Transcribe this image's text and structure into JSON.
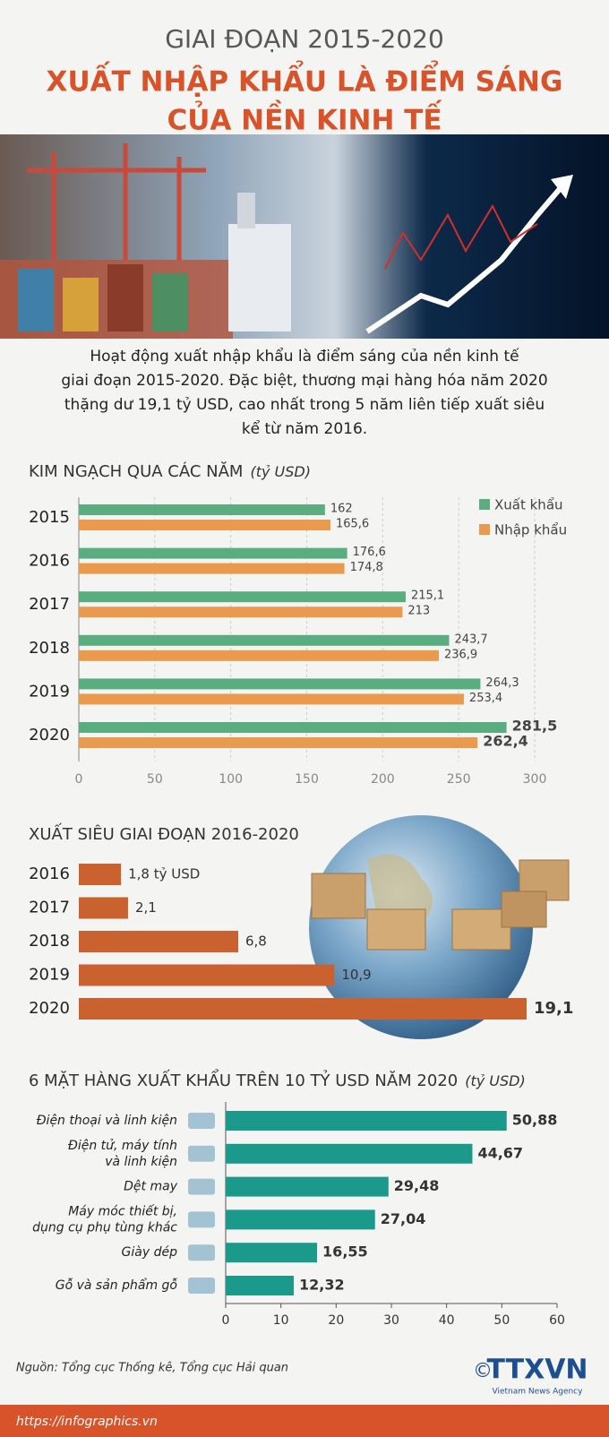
{
  "header": {
    "supertitle": "GIAI ĐOẠN 2015-2020",
    "title_lines": [
      "XUẤT NHẬP KHẨU LÀ ĐIỂM SÁNG",
      "CỦA NỀN KINH TẾ"
    ]
  },
  "intro": {
    "lines": [
      "Hoạt động xuất nhập khẩu là điểm sáng của nền kinh tế",
      "giai đoạn 2015-2020. Đặc biệt, thương mại hàng hóa năm 2020",
      "thặng dư 19,1 tỷ USD, cao nhất trong 5 năm liên tiếp xuất siêu",
      "kể từ năm 2016."
    ]
  },
  "chart_data": [
    {
      "type": "grouped-hbar",
      "title": "KIM NGẠCH QUA CÁC NĂM",
      "unit": "(tỷ USD)",
      "categories": [
        "2015",
        "2016",
        "2017",
        "2018",
        "2019",
        "2020"
      ],
      "series": [
        {
          "name": "Xuất khẩu",
          "color": "#5aad7f",
          "values": [
            162,
            176.6,
            215.1,
            243.7,
            264.3,
            281.5
          ],
          "value_labels": [
            "162",
            "176,6",
            "215,1",
            "243,7",
            "264,3",
            "281,5"
          ]
        },
        {
          "name": "Nhập khẩu",
          "color": "#e99a4c",
          "values": [
            165.6,
            174.8,
            213,
            236.9,
            253.4,
            262.4
          ],
          "value_labels": [
            "165,6",
            "174,8",
            "213",
            "236,9",
            "253,4",
            "262,4"
          ]
        }
      ],
      "xlim": [
        0,
        300
      ],
      "xticks": [
        0,
        50,
        100,
        150,
        200,
        250,
        300
      ],
      "grid": true,
      "legend": "top-right"
    },
    {
      "type": "hbar",
      "title": "XUẤT SIÊU GIAI ĐOẠN 2016-2020",
      "categories": [
        "2016",
        "2017",
        "2018",
        "2019",
        "2020"
      ],
      "values": [
        1.8,
        2.1,
        6.8,
        10.9,
        19.1
      ],
      "value_labels": [
        "1,8 tỷ USD",
        "2,1",
        "6,8",
        "10,9",
        "19,1"
      ],
      "color": "#c9622f"
    },
    {
      "type": "hbar-axis",
      "title": "6 MẶT HÀNG XUẤT KHẨU TRÊN 10 TỶ USD NĂM 2020",
      "unit": "(tỷ USD)",
      "categories": [
        [
          "Điện thoại và linh kiện"
        ],
        [
          "Điện tử, máy tính",
          "và linh kiện"
        ],
        [
          "Dệt may"
        ],
        [
          "Máy móc thiết bị,",
          "dụng cụ phụ tùng khác"
        ],
        [
          "Giày dép"
        ],
        [
          "Gỗ và sản phẩm gỗ"
        ]
      ],
      "values": [
        50.88,
        44.67,
        29.48,
        27.04,
        16.55,
        12.32
      ],
      "value_labels": [
        "50,88",
        "44,67",
        "29,48",
        "27,04",
        "16,55",
        "12,32"
      ],
      "color": "#1b9a8b",
      "xlim": [
        0,
        60
      ],
      "xticks": [
        0,
        10,
        20,
        30,
        40,
        50,
        60
      ],
      "grid": false
    }
  ],
  "footer": {
    "source": "Nguồn: Tổng cục Thống kê, Tổng cục Hải quan",
    "url": "https://infographics.vn",
    "logo": "TTXVN",
    "logo_sub": "Vietnam News Agency",
    "copyright": "©"
  }
}
